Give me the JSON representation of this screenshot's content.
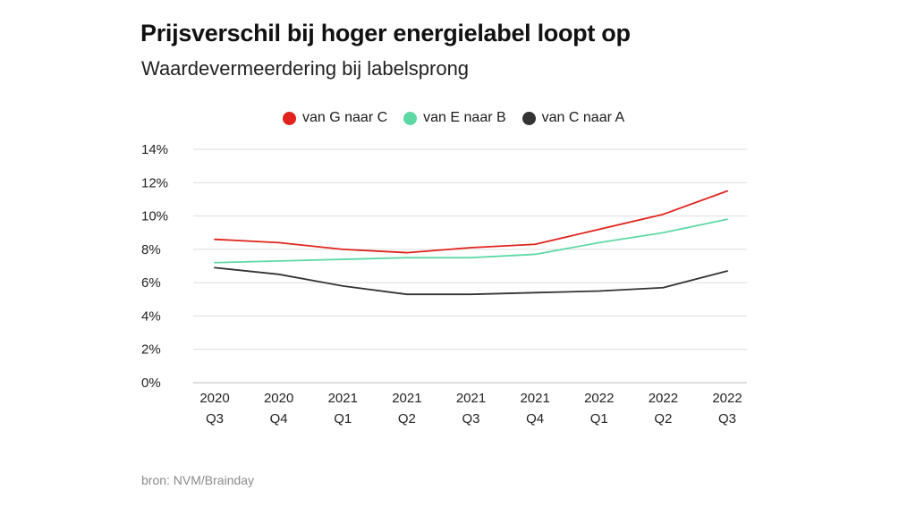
{
  "header": {
    "title": "Prijsverschil bij hoger energielabel loopt op",
    "subtitle": "Waardevermeerdering bij labelsprong"
  },
  "footer": {
    "source": "bron: NVM/Brainday"
  },
  "chart_data": {
    "type": "line",
    "title": "Prijsverschil bij hoger energielabel loopt op",
    "subtitle": "Waardevermeerdering bij labelsprong",
    "categories": [
      [
        "2020",
        "Q3"
      ],
      [
        "2020",
        "Q4"
      ],
      [
        "2021",
        "Q1"
      ],
      [
        "2021",
        "Q2"
      ],
      [
        "2021",
        "Q3"
      ],
      [
        "2021",
        "Q4"
      ],
      [
        "2022",
        "Q1"
      ],
      [
        "2022",
        "Q2"
      ],
      [
        "2022",
        "Q3"
      ]
    ],
    "y_ticks": [
      "0%",
      "2%",
      "4%",
      "6%",
      "8%",
      "10%",
      "12%",
      "14%"
    ],
    "ylim": [
      0,
      14
    ],
    "grid": true,
    "legend_position": "top",
    "series": [
      {
        "name": "van G naar C",
        "color": "#e0231c",
        "values": [
          8.6,
          8.4,
          8.0,
          7.8,
          8.1,
          8.3,
          9.2,
          10.1,
          11.5
        ]
      },
      {
        "name": "van E naar B",
        "color": "#5ed9a6",
        "values": [
          7.2,
          7.3,
          7.4,
          7.5,
          7.5,
          7.7,
          8.4,
          9.0,
          9.8
        ]
      },
      {
        "name": "van C naar A",
        "color": "#333333",
        "values": [
          6.9,
          6.5,
          5.8,
          5.3,
          5.3,
          5.4,
          5.5,
          5.7,
          6.7
        ]
      }
    ]
  }
}
